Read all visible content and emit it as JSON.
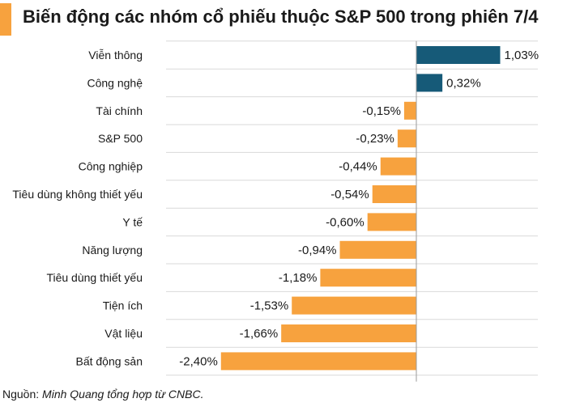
{
  "title": "Biến động các nhóm cổ phiếu thuộc S&P 500 trong phiên 7/4",
  "footer": {
    "prefix": "Nguồn: ",
    "source": "Minh Quang tổng hợp từ CNBC."
  },
  "colors": {
    "positive": "#165a78",
    "negative": "#f7a23e",
    "accent": "#f7a23e",
    "grid": "#d9d9d9"
  },
  "chart_data": {
    "type": "bar",
    "orientation": "horizontal",
    "categories": [
      "Viễn thông",
      "Công nghệ",
      "Tài chính",
      "S&P 500",
      "Công nghiệp",
      "Tiêu dùng không thiết yếu",
      "Y tế",
      "Năng lượng",
      "Tiêu dùng thiết yếu",
      "Tiện ích",
      "Vật liệu",
      "Bất động sản"
    ],
    "values": [
      1.03,
      0.32,
      -0.15,
      -0.23,
      -0.44,
      -0.54,
      -0.6,
      -0.94,
      -1.18,
      -1.53,
      -1.66,
      -2.4
    ],
    "value_labels": [
      "1,03%",
      "0,32%",
      "-0,15%",
      "-0,23%",
      "-0,44%",
      "-0,54%",
      "-0,60%",
      "-0,94%",
      "-1,18%",
      "-1,53%",
      "-1,66%",
      "-2,40%"
    ],
    "unit": "%",
    "xlim": [
      -2.4,
      1.5
    ],
    "grid": "horizontal"
  }
}
